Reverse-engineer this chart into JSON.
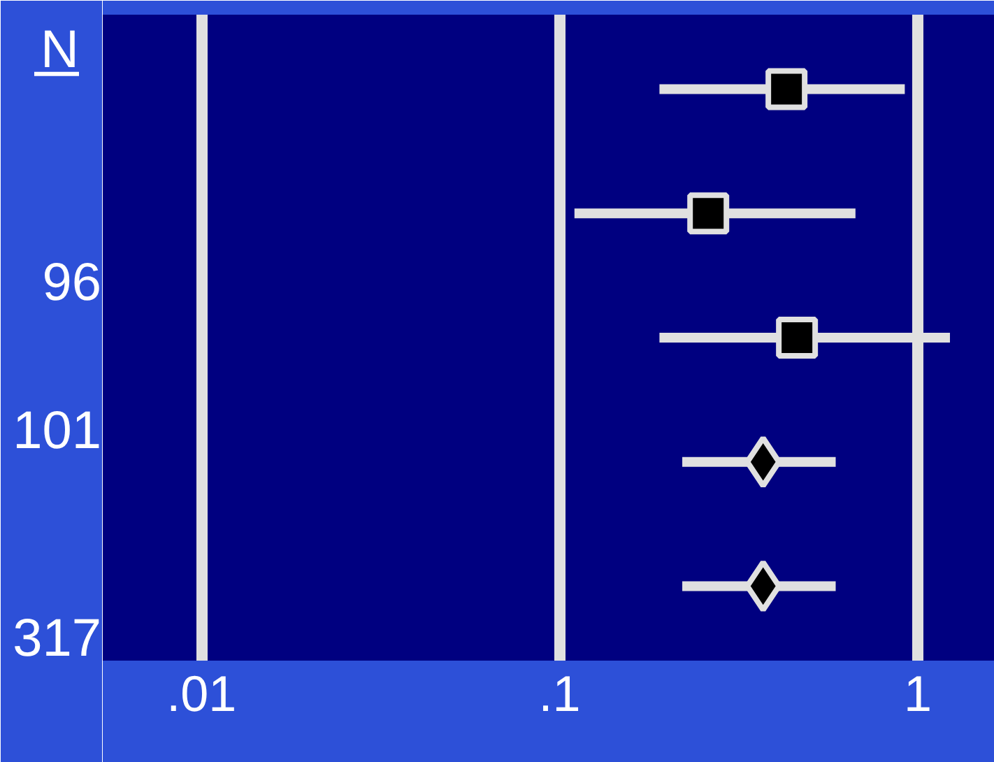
{
  "chart_data": {
    "type": "scatter",
    "orientation": "horizontal",
    "log": "x",
    "categories": [
      null,
      null,
      null,
      null,
      null
    ],
    "series": [
      {
        "marker": "square",
        "color": "#000000",
        "values": [
          0.43,
          0.26,
          0.46,
          null,
          null
        ],
        "errors": [
          [
            0.19,
            0.92
          ],
          [
            0.11,
            0.67
          ],
          [
            0.19,
            1.23
          ],
          null,
          null
        ]
      },
      {
        "marker": "diamond",
        "color": "#000000",
        "values": [
          null,
          null,
          null,
          0.37,
          0.37
        ],
        "errors": [
          null,
          null,
          null,
          [
            0.22,
            0.59
          ],
          [
            0.22,
            0.59
          ]
        ]
      }
    ],
    "xlim": [
      0.0053,
      1.64
    ],
    "xticks": [
      {
        "value": 0.01,
        "label": ".01"
      },
      {
        "value": 0.1,
        "label": ".1"
      },
      1
    ],
    "grid": "x",
    "tick_labels": "x",
    "annotations": [
      "N",
      "96",
      "101",
      "317"
    ]
  }
}
